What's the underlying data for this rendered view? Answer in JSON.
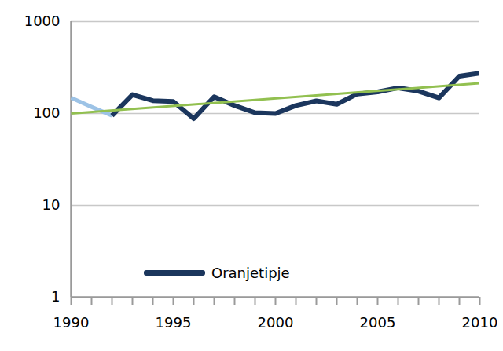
{
  "chart_data": {
    "type": "line",
    "x": [
      1990,
      1991,
      1992,
      1993,
      1994,
      1995,
      1996,
      1997,
      1998,
      1999,
      2000,
      2001,
      2002,
      2003,
      2004,
      2005,
      2006,
      2007,
      2008,
      2009,
      2010
    ],
    "series": [
      {
        "color": "#9dc3e6",
        "values": [
          148,
          118,
          95,
          null,
          null,
          null,
          null,
          null,
          null,
          null,
          null,
          null,
          null,
          null,
          null,
          null,
          null,
          null,
          null,
          null,
          null
        ]
      },
      {
        "name": "Oranjetipje",
        "color": "#1b365d",
        "values": [
          null,
          null,
          95,
          160,
          138,
          135,
          88,
          152,
          122,
          102,
          100,
          122,
          137,
          126,
          163,
          172,
          190,
          175,
          148,
          255,
          275
        ]
      },
      {
        "color": "#92c050",
        "x": [
          1990,
          2010
        ],
        "values": [
          100,
          213
        ]
      }
    ],
    "xlim": [
      1990,
      2010
    ],
    "xticks": [
      1990,
      1995,
      2000,
      2005,
      2010
    ],
    "ylim": [
      1,
      1000
    ],
    "yticks": [
      1,
      10,
      100,
      1000
    ],
    "log": "y",
    "grid": true,
    "legend": "lower left"
  }
}
